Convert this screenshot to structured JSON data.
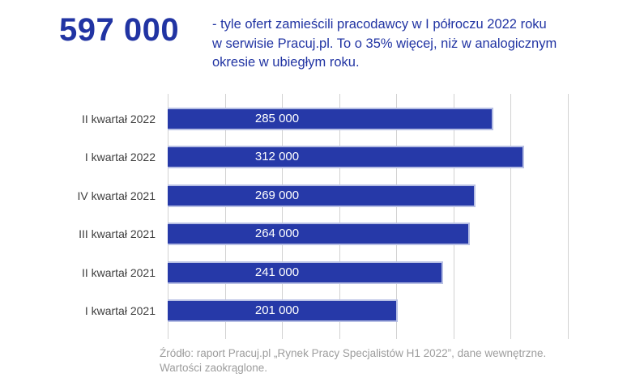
{
  "header": {
    "big_number": "597 000",
    "description_lines": [
      "- tyle ofert zamieścili pracodawcy w I półroczu 2022 roku",
      "w serwisie Pracuj.pl. To o 35% więcej, niż w analogicznym",
      "okresie w ubiegłym roku."
    ]
  },
  "chart_data": {
    "type": "bar",
    "orientation": "horizontal",
    "categories": [
      "II kwartał 2022",
      "I kwartał 2022",
      "IV kwartał 2021",
      "III kwartał 2021",
      "II kwartał 2021",
      "I kwartał 2021"
    ],
    "values": [
      285000,
      312000,
      269000,
      264000,
      241000,
      201000
    ],
    "value_labels": [
      "285 000",
      "312 000",
      "269 000",
      "264 000",
      "241 000",
      "201 000"
    ],
    "xlim": [
      0,
      350000
    ],
    "grid_step": 50000,
    "grid": "vertical-only",
    "legend": "none",
    "axis_tick_labels": "none"
  },
  "footer": {
    "source_line1": "Źródło: raport Pracuj.pl „Rynek Pracy Specjalistów H1 2022”, dane wewnętrzne.",
    "source_line2": "Wartości zaokrąglone."
  },
  "colors": {
    "accent": "#2134a3",
    "bar-fill": "#2639a8",
    "bar-border": "#b7bfe4",
    "grid-line": "#d2d2d2",
    "label-text": "#3e3e3e",
    "muted-text": "#9d9d9d",
    "value-text": "#ffffff"
  }
}
